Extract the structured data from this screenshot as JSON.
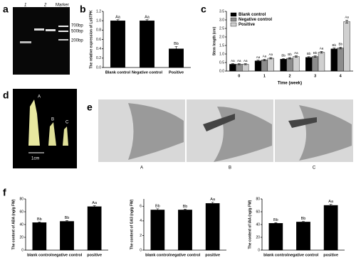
{
  "panel_labels": [
    "a",
    "b",
    "c",
    "d",
    "e",
    "f"
  ],
  "gel": {
    "lanes": [
      "1",
      "2"
    ],
    "marker": "Marker",
    "bands": [
      "700bp",
      "500bp",
      "200bp"
    ]
  },
  "photo_d": {
    "labels": [
      "A",
      "B",
      "C"
    ],
    "scale": "1cm"
  },
  "micrographs": {
    "labels": [
      "A",
      "B",
      "C"
    ]
  },
  "chart_data": [
    {
      "type": "bar",
      "ylabel": "The relative expression of LsSTPK",
      "categories": [
        "Blank control",
        "Negative control",
        "Positive"
      ],
      "values": [
        1.0,
        1.0,
        0.4
      ],
      "errors": [
        0.02,
        0.02,
        0.05
      ],
      "letters": [
        "Aa",
        "Aa",
        "Bb"
      ],
      "color": "#000000",
      "ylim": [
        0,
        1.2
      ],
      "yticks": [
        {
          "value": 0,
          "label": "0.0"
        },
        {
          "value": 0.2,
          "label": "0.2"
        },
        {
          "value": 0.4,
          "label": "0.4"
        },
        {
          "value": 0.6,
          "label": "0.6"
        },
        {
          "value": 0.8,
          "label": "0.8"
        },
        {
          "value": 1.0,
          "label": "1.0"
        },
        {
          "value": 1.2,
          "label": "1.2"
        }
      ]
    },
    {
      "type": "bar",
      "xlabel": "Time (week)",
      "ylabel": "Stem length (cm)",
      "categories": [
        "0",
        "1",
        "2",
        "3",
        "4"
      ],
      "legend": "upper left",
      "series": [
        {
          "name": "Blank control",
          "color": "#000000",
          "values": [
            0.4,
            0.6,
            0.7,
            0.8,
            1.3
          ],
          "errors": [
            0.03,
            0.04,
            0.04,
            0.04,
            0.05
          ],
          "letters": [
            "Aa",
            "Aa",
            "Bb",
            "Bb",
            "Bb"
          ]
        },
        {
          "name": "Negative control",
          "color": "#8c8c8c",
          "values": [
            0.4,
            0.65,
            0.75,
            0.85,
            1.35
          ],
          "errors": [
            0.03,
            0.04,
            0.04,
            0.04,
            0.05
          ],
          "letters": [
            "Aa",
            "Aa",
            "Bb",
            "Bb",
            "Bb"
          ]
        },
        {
          "name": "Positive",
          "color": "#d0d0d0",
          "values": [
            0.4,
            0.75,
            0.85,
            1.1,
            2.9
          ],
          "errors": [
            0.03,
            0.04,
            0.04,
            0.05,
            0.08
          ],
          "letters": [
            "Aa",
            "Aa",
            "Aa",
            "Aa",
            "Aa"
          ]
        }
      ],
      "ylim": [
        0,
        3.5
      ],
      "yticks": [
        {
          "value": 0,
          "label": "0.0"
        },
        {
          "value": 0.5,
          "label": "0.5"
        },
        {
          "value": 1.0,
          "label": "1.0"
        },
        {
          "value": 1.5,
          "label": "1.5"
        },
        {
          "value": 2.0,
          "label": "2.0"
        },
        {
          "value": 2.5,
          "label": "2.5"
        },
        {
          "value": 3.0,
          "label": "3.0"
        },
        {
          "value": 3.5,
          "label": "3.5"
        }
      ]
    },
    {
      "type": "bar",
      "ylabel": "The content of ABA (ng/g FW)",
      "categories": [
        "blank control",
        "negative control",
        "positive"
      ],
      "values": [
        43,
        45,
        68
      ],
      "errors": [
        1,
        1,
        1.5
      ],
      "letters": [
        "Bb",
        "Bb",
        "Aa"
      ],
      "color": "#000000",
      "ylim": [
        0,
        80
      ],
      "yticks": [
        0,
        20,
        40,
        60,
        80
      ]
    },
    {
      "type": "bar",
      "ylabel": "The content of GA3 (ng/g FW)",
      "categories": [
        "blank control",
        "negative control",
        "positive"
      ],
      "values": [
        5.5,
        5.5,
        6.4
      ],
      "errors": [
        0.15,
        0.1,
        0.15
      ],
      "letters": [
        "Bb",
        "Bb",
        "Aa"
      ],
      "color": "#000000",
      "ylim": [
        0,
        7
      ],
      "yticks": [
        0,
        2,
        4,
        6
      ]
    },
    {
      "type": "bar",
      "ylabel": "The content of IAA (ng/g FW)",
      "categories": [
        "blank control",
        "negative control",
        "positive"
      ],
      "values": [
        42,
        44,
        70
      ],
      "errors": [
        1,
        1,
        1.5
      ],
      "letters": [
        "Bb",
        "Bb",
        "Aa"
      ],
      "color": "#000000",
      "ylim": [
        0,
        80
      ],
      "yticks": [
        0,
        20,
        40,
        60,
        80
      ]
    }
  ]
}
